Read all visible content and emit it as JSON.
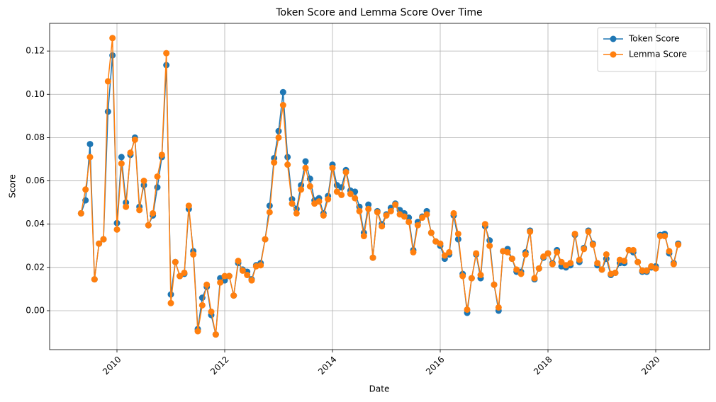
{
  "chart_data": {
    "type": "line",
    "title": "Token Score and Lemma Score Over Time",
    "xlabel": "Date",
    "ylabel": "Score",
    "x": [
      "2009-05",
      "2009-06",
      "2009-07",
      "2009-08",
      "2009-09",
      "2009-10",
      "2009-11",
      "2009-12",
      "2010-01",
      "2010-02",
      "2010-03",
      "2010-04",
      "2010-05",
      "2010-06",
      "2010-07",
      "2010-08",
      "2010-09",
      "2010-10",
      "2010-11",
      "2010-12",
      "2011-01",
      "2011-02",
      "2011-03",
      "2011-04",
      "2011-05",
      "2011-06",
      "2011-07",
      "2011-08",
      "2011-09",
      "2011-10",
      "2011-11",
      "2011-12",
      "2012-01",
      "2012-02",
      "2012-03",
      "2012-04",
      "2012-05",
      "2012-06",
      "2012-07",
      "2012-08",
      "2012-09",
      "2012-10",
      "2012-11",
      "2012-12",
      "2013-01",
      "2013-02",
      "2013-03",
      "2013-04",
      "2013-05",
      "2013-06",
      "2013-07",
      "2013-08",
      "2013-09",
      "2013-10",
      "2013-11",
      "2013-12",
      "2014-01",
      "2014-02",
      "2014-03",
      "2014-04",
      "2014-05",
      "2014-06",
      "2014-07",
      "2014-08",
      "2014-09",
      "2014-10",
      "2014-11",
      "2014-12",
      "2015-01",
      "2015-02",
      "2015-03",
      "2015-04",
      "2015-05",
      "2015-06",
      "2015-07",
      "2015-08",
      "2015-09",
      "2015-10",
      "2015-11",
      "2015-12",
      "2016-01",
      "2016-02",
      "2016-03",
      "2016-04",
      "2016-05",
      "2016-06",
      "2016-07",
      "2016-08",
      "2016-09",
      "2016-10",
      "2016-11",
      "2016-12",
      "2017-01",
      "2017-02",
      "2017-03",
      "2017-04",
      "2017-05",
      "2017-06",
      "2017-07",
      "2017-08",
      "2017-09",
      "2017-10",
      "2017-11",
      "2017-12",
      "2018-01",
      "2018-02",
      "2018-03",
      "2018-04",
      "2018-05",
      "2018-06",
      "2018-07",
      "2018-08",
      "2018-09",
      "2018-10",
      "2018-11",
      "2018-12",
      "2019-01",
      "2019-02",
      "2019-03",
      "2019-04",
      "2019-05",
      "2019-06",
      "2019-07",
      "2019-08",
      "2019-09",
      "2019-10",
      "2019-11",
      "2019-12",
      "2020-01",
      "2020-02",
      "2020-03",
      "2020-04",
      "2020-05",
      "2020-06"
    ],
    "series": [
      {
        "name": "Token Score",
        "color": "#1f77b4",
        "values": [
          0.045,
          0.051,
          0.077,
          0.0145,
          0.031,
          0.033,
          0.092,
          0.118,
          0.0405,
          0.071,
          0.05,
          0.072,
          0.08,
          0.048,
          0.058,
          0.0395,
          0.044,
          0.057,
          0.071,
          0.1135,
          0.0075,
          0.0225,
          0.016,
          0.017,
          0.047,
          0.0275,
          -0.0085,
          0.006,
          0.011,
          -0.002,
          -0.011,
          0.015,
          0.014,
          0.016,
          0.007,
          0.022,
          0.019,
          0.018,
          0.0145,
          0.021,
          0.022,
          0.033,
          0.0485,
          0.0705,
          0.083,
          0.101,
          0.071,
          0.0515,
          0.047,
          0.058,
          0.069,
          0.061,
          0.051,
          0.052,
          0.045,
          0.053,
          0.0675,
          0.058,
          0.057,
          0.065,
          0.0555,
          0.055,
          0.048,
          0.036,
          0.049,
          0.0245,
          0.046,
          0.04,
          0.0445,
          0.0475,
          0.0495,
          0.0465,
          0.045,
          0.043,
          0.028,
          0.041,
          0.0435,
          0.046,
          0.036,
          0.032,
          0.03,
          0.024,
          0.026,
          0.044,
          0.033,
          0.017,
          -0.001,
          0.015,
          0.026,
          0.015,
          0.039,
          0.0325,
          0.012,
          0.0,
          0.0275,
          0.0285,
          0.024,
          0.018,
          0.018,
          0.027,
          0.037,
          0.0145,
          0.0195,
          0.0245,
          0.0265,
          0.022,
          0.028,
          0.0205,
          0.02,
          0.021,
          0.035,
          0.0225,
          0.029,
          0.037,
          0.031,
          0.021,
          0.019,
          0.024,
          0.0165,
          0.0175,
          0.022,
          0.022,
          0.028,
          0.027,
          0.0225,
          0.018,
          0.018,
          0.02,
          0.0205,
          0.035,
          0.0355,
          0.0265,
          0.022,
          0.031
        ]
      },
      {
        "name": "Lemma Score",
        "color": "#ff7f0e",
        "values": [
          0.045,
          0.056,
          0.071,
          0.0145,
          0.031,
          0.033,
          0.106,
          0.126,
          0.0375,
          0.068,
          0.048,
          0.073,
          0.079,
          0.0465,
          0.06,
          0.0395,
          0.045,
          0.062,
          0.072,
          0.119,
          0.0035,
          0.0225,
          0.016,
          0.0175,
          0.0485,
          0.026,
          -0.0095,
          0.0025,
          0.012,
          -0.0005,
          -0.011,
          0.013,
          0.016,
          0.016,
          0.007,
          0.023,
          0.0185,
          0.0165,
          0.014,
          0.0205,
          0.021,
          0.033,
          0.0455,
          0.0685,
          0.08,
          0.095,
          0.0675,
          0.0495,
          0.045,
          0.056,
          0.066,
          0.0575,
          0.0495,
          0.0505,
          0.044,
          0.0515,
          0.066,
          0.055,
          0.0535,
          0.064,
          0.054,
          0.052,
          0.046,
          0.0345,
          0.047,
          0.0245,
          0.0455,
          0.039,
          0.044,
          0.046,
          0.049,
          0.0445,
          0.0435,
          0.041,
          0.027,
          0.0395,
          0.043,
          0.0445,
          0.036,
          0.032,
          0.031,
          0.0255,
          0.027,
          0.045,
          0.0355,
          0.016,
          0.0005,
          0.015,
          0.0265,
          0.0165,
          0.04,
          0.03,
          0.012,
          0.0015,
          0.0275,
          0.027,
          0.024,
          0.019,
          0.017,
          0.026,
          0.0365,
          0.015,
          0.0195,
          0.025,
          0.0265,
          0.0215,
          0.027,
          0.0225,
          0.021,
          0.022,
          0.0355,
          0.0235,
          0.0285,
          0.0365,
          0.0305,
          0.022,
          0.019,
          0.026,
          0.017,
          0.0175,
          0.0235,
          0.023,
          0.028,
          0.028,
          0.0225,
          0.0185,
          0.0185,
          0.0205,
          0.0195,
          0.0345,
          0.0345,
          0.0275,
          0.0215,
          0.0305
        ]
      }
    ],
    "xlim": [
      "2008-10",
      "2021-01"
    ],
    "xticks": [
      "2010",
      "2012",
      "2014",
      "2016",
      "2018",
      "2020"
    ],
    "ylim": [
      -0.018,
      0.1328
    ],
    "yticks": [
      {
        "value": 0,
        "label": "0.00"
      },
      {
        "value": 0.02,
        "label": "0.02"
      },
      {
        "value": 0.04,
        "label": "0.04"
      },
      {
        "value": 0.06,
        "label": "0.06"
      },
      {
        "value": 0.08,
        "label": "0.08"
      },
      {
        "value": 0.1,
        "label": "0.10"
      },
      {
        "value": 0.12,
        "label": "0.12"
      }
    ],
    "grid": true,
    "legend": "upper right"
  }
}
